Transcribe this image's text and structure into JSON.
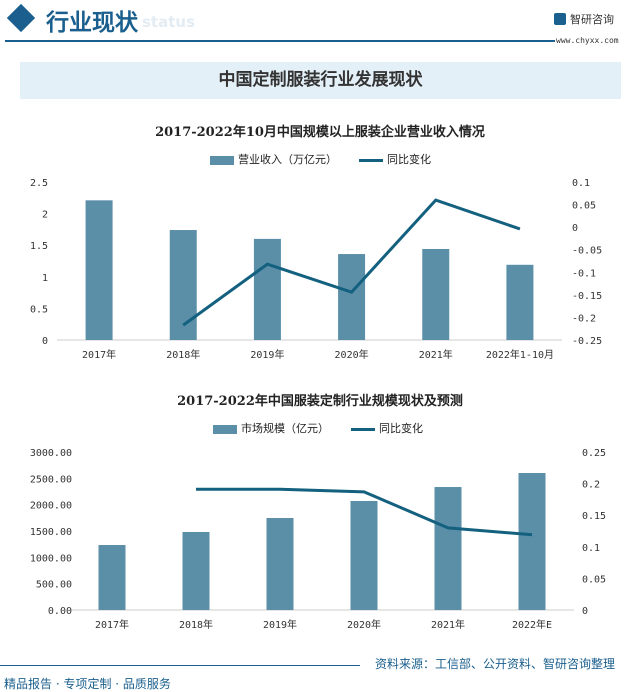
{
  "header": {
    "title": "行业现状",
    "watermark": "status",
    "logo": "智研咨询",
    "url": "www.chyxx.com"
  },
  "banner": "中国定制服装行业发展现状",
  "chart_data": [
    {
      "type": "bar+line",
      "title": "2017-2022年10月中国规模以上服装企业营业收入情况",
      "categories": [
        "2017年",
        "2018年",
        "2019年",
        "2020年",
        "2021年",
        "2022年1-10月"
      ],
      "series": [
        {
          "name": "营业收入（万亿元）",
          "type": "bar",
          "axis": "left",
          "values": [
            2.21,
            1.74,
            1.6,
            1.36,
            1.44,
            1.19
          ]
        },
        {
          "name": "同比变化",
          "type": "line",
          "axis": "right",
          "values": [
            null,
            -0.217,
            -0.082,
            -0.144,
            0.06,
            -0.004
          ]
        }
      ],
      "ylim": [
        0,
        2.5
      ],
      "yticks": [
        "0",
        "0.5",
        "1",
        "1.5",
        "2",
        "2.5"
      ],
      "y2lim": [
        -0.25,
        0.1
      ],
      "y2ticks": [
        "-0.25",
        "-0.2",
        "-0.15",
        "-0.1",
        "-0.05",
        "0",
        "0.05",
        "0.1"
      ],
      "legend": "top",
      "colors": {
        "bar": "#5b8fa8",
        "line": "#13607f"
      }
    },
    {
      "type": "bar+line",
      "title": "2017-2022年中国服装定制行业规模现状及预测",
      "categories": [
        "2017年",
        "2018年",
        "2019年",
        "2020年",
        "2021年",
        "2022年E"
      ],
      "series": [
        {
          "name": "市场规模（亿元）",
          "type": "bar",
          "axis": "left",
          "values": [
            1234,
            1481,
            1747,
            2070,
            2335,
            2601
          ]
        },
        {
          "name": "同比变化",
          "type": "line",
          "axis": "right",
          "values": [
            null,
            0.191,
            0.191,
            0.187,
            0.13,
            0.119
          ]
        }
      ],
      "ylim": [
        0,
        3000
      ],
      "yticks": [
        "0.00",
        "500.00",
        "1000.00",
        "1500.00",
        "2000.00",
        "2500.00",
        "3000.00"
      ],
      "y2lim": [
        0,
        0.25
      ],
      "y2ticks": [
        "0",
        "0.05",
        "0.1",
        "0.15",
        "0.2",
        "0.25"
      ],
      "legend": "top",
      "colors": {
        "bar": "#5b8fa8",
        "line": "#13607f"
      }
    }
  ],
  "footer": {
    "left": "精品报告 · 专项定制 · 品质服务",
    "source": "资料来源：工信部、公开资料、智研咨询整理"
  }
}
